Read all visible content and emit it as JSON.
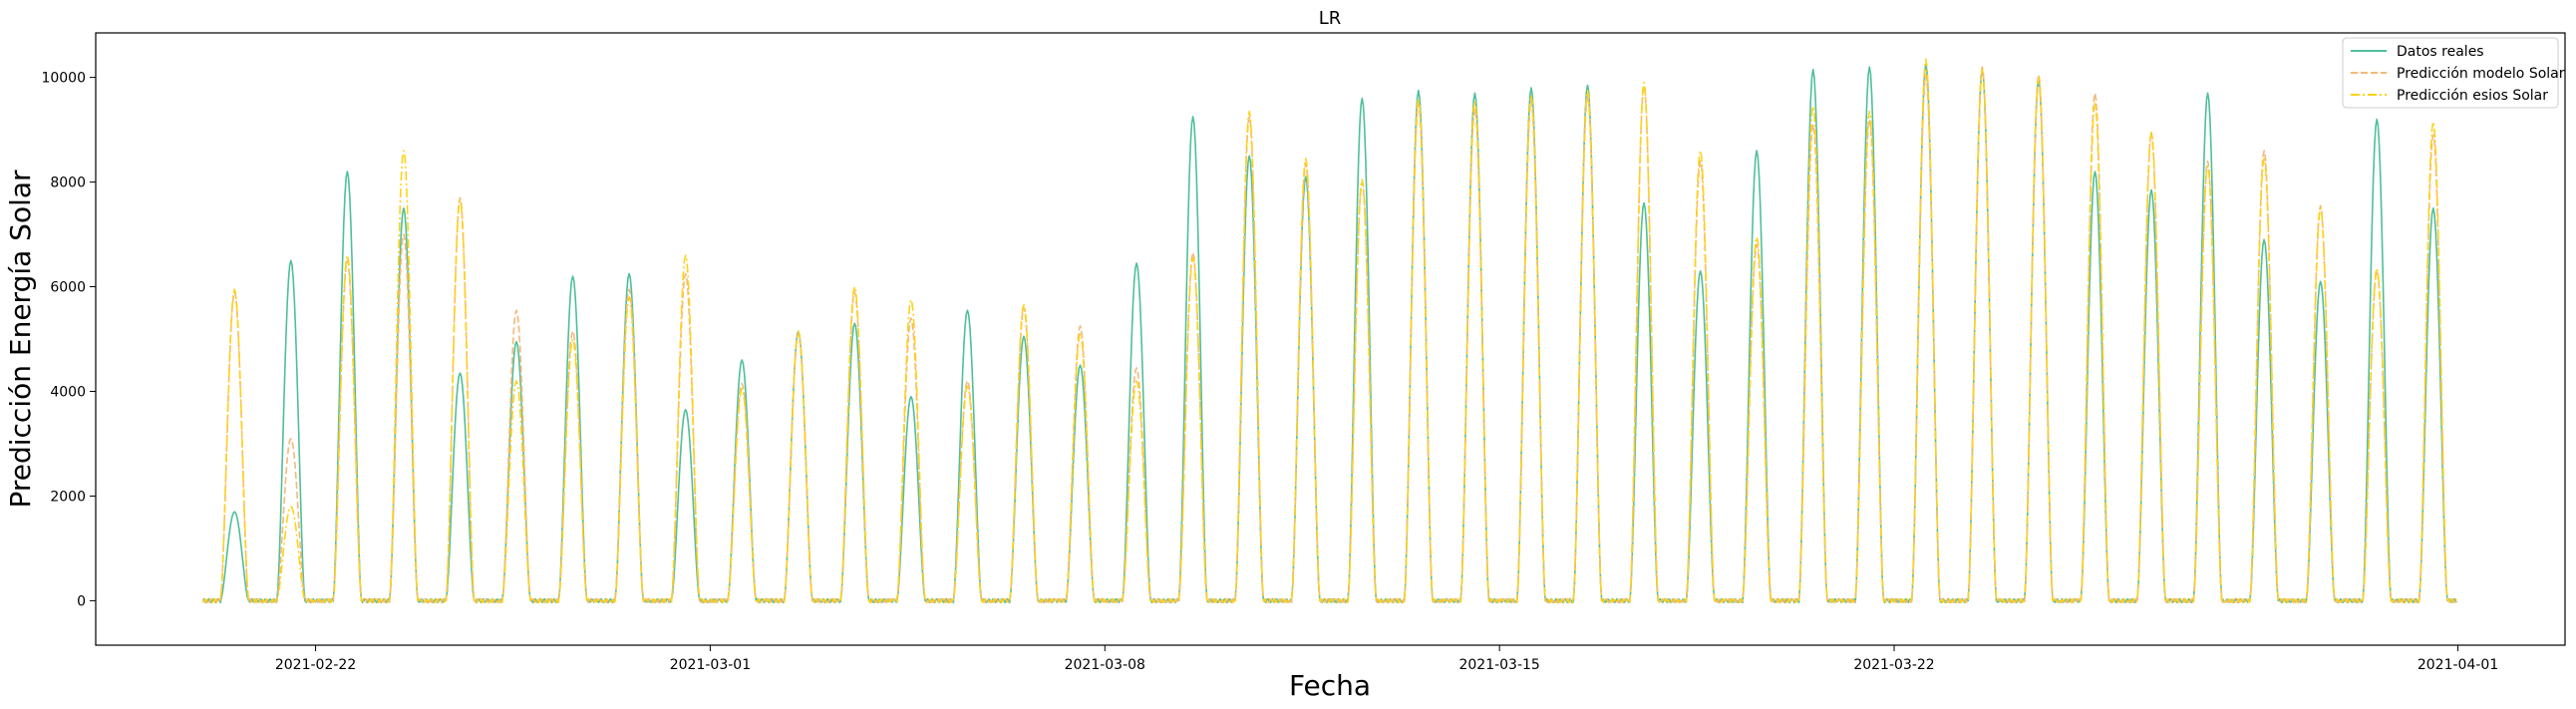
{
  "chart_data": {
    "type": "line",
    "title": "LR",
    "xlabel": "Fecha",
    "ylabel": "Predicción Energía Solar",
    "x_start_date": "2021-02-20",
    "num_days": 40,
    "xlim_days": [
      -1.9,
      41.9
    ],
    "ylim": [
      -850,
      10850
    ],
    "x_ticks": [
      {
        "label": "2021-02-22",
        "day": 2
      },
      {
        "label": "2021-03-01",
        "day": 9
      },
      {
        "label": "2021-03-08",
        "day": 16
      },
      {
        "label": "2021-03-15",
        "day": 23
      },
      {
        "label": "2021-03-22",
        "day": 30
      },
      {
        "label": "2021-04-01",
        "day": 40
      }
    ],
    "y_ticks": [
      {
        "label": "0",
        "value": 0
      },
      {
        "label": "2000",
        "value": 2000
      },
      {
        "label": "4000",
        "value": 4000
      },
      {
        "label": "6000",
        "value": 6000
      },
      {
        "label": "8000",
        "value": 8000
      },
      {
        "label": "10000",
        "value": 10000
      }
    ],
    "legend_position": "top-right",
    "series": [
      {
        "name": "Datos reales",
        "color": "#4fbf9a",
        "dash": "solid",
        "daily_peaks": [
          1700,
          6500,
          8200,
          7500,
          4350,
          4950,
          6200,
          6250,
          3650,
          4600,
          5150,
          5300,
          3900,
          5550,
          5050,
          4500,
          6450,
          9250,
          8500,
          8100,
          9600,
          9750,
          9700,
          9800,
          9850,
          7600,
          6300,
          8600,
          10150,
          10200,
          10250,
          10150,
          9950,
          8200,
          7850,
          9700,
          6900,
          6100,
          9200,
          7500
        ]
      },
      {
        "name": "Predicción modelo Solar",
        "color": "#f5b87a",
        "dash": "dashed",
        "daily_peaks": [
          5900,
          3100,
          6500,
          7000,
          7700,
          5550,
          5150,
          5950,
          6250,
          4150,
          5100,
          5900,
          5400,
          4200,
          5600,
          5250,
          4450,
          6650,
          9250,
          8350,
          8000,
          9500,
          9400,
          9550,
          9650,
          9850,
          8400,
          6800,
          9100,
          9200,
          10050,
          10200,
          10050,
          9700,
          8950,
          8400,
          8600,
          7550,
          6300,
          8900
        ]
      },
      {
        "name": "Predicción esios Solar",
        "color": "#ffd21a",
        "dash": "dashdot",
        "daily_peaks": [
          5950,
          1800,
          6600,
          8600,
          7650,
          4200,
          5000,
          5800,
          6600,
          4050,
          5150,
          6000,
          5750,
          4100,
          5650,
          5100,
          4200,
          6550,
          9350,
          8450,
          8050,
          9600,
          9550,
          9650,
          9750,
          9900,
          8600,
          6950,
          9450,
          9350,
          10350,
          10150,
          10000,
          9500,
          8950,
          8300,
          8450,
          7500,
          6350,
          9150
        ]
      }
    ]
  }
}
